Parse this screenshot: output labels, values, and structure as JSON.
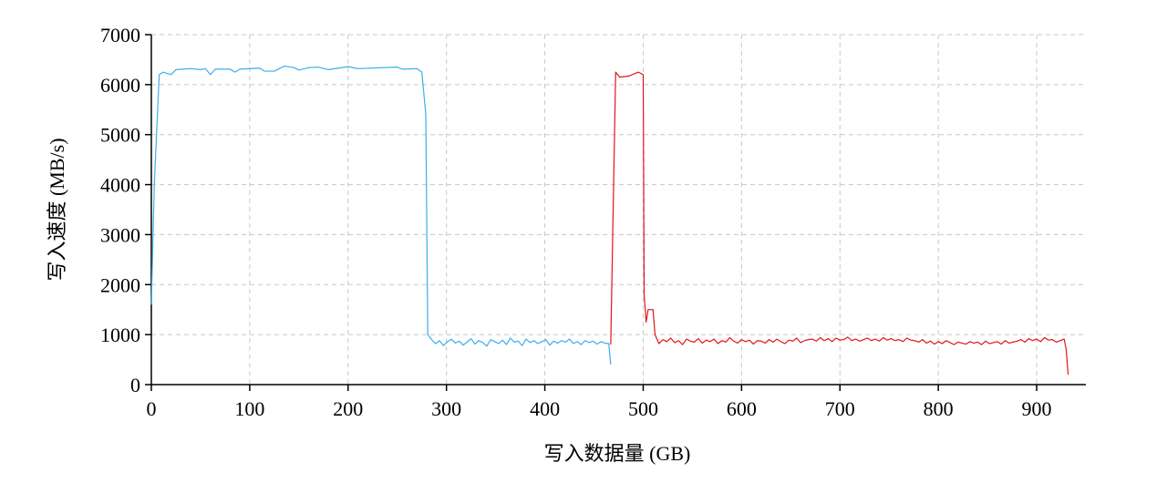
{
  "chart_data": {
    "type": "line",
    "x_label": "写入数据量 (GB)",
    "y_label": "写入速度 (MB/s)",
    "xlim": [
      0,
      950
    ],
    "ylim": [
      0,
      7000
    ],
    "xticks": [
      0,
      100,
      200,
      300,
      400,
      500,
      600,
      700,
      800,
      900
    ],
    "yticks": [
      0,
      1000,
      2000,
      3000,
      4000,
      5000,
      6000,
      7000
    ],
    "grid": true,
    "series": [
      {
        "color": "#3daee9",
        "x": [
          0,
          3,
          8,
          12,
          20,
          25,
          40,
          50,
          55,
          60,
          65,
          80,
          85,
          90,
          110,
          115,
          125,
          135,
          145,
          150,
          160,
          170,
          180,
          200,
          210,
          250,
          255,
          270,
          275,
          279,
          281,
          285,
          289,
          293,
          297,
          301,
          305,
          309,
          313,
          317,
          321,
          325,
          329,
          333,
          337,
          341,
          345,
          349,
          353,
          357,
          361,
          365,
          369,
          373,
          377,
          381,
          385,
          389,
          393,
          397,
          401,
          405,
          409,
          413,
          417,
          421,
          425,
          429,
          433,
          437,
          441,
          445,
          449,
          453,
          457,
          461,
          465,
          467
        ],
        "values": [
          1600,
          4000,
          6200,
          6250,
          6200,
          6300,
          6320,
          6300,
          6320,
          6200,
          6310,
          6310,
          6250,
          6310,
          6330,
          6270,
          6270,
          6370,
          6340,
          6290,
          6340,
          6350,
          6300,
          6360,
          6320,
          6350,
          6310,
          6320,
          6250,
          5400,
          1000,
          900,
          820,
          880,
          780,
          860,
          910,
          830,
          870,
          790,
          850,
          920,
          810,
          880,
          840,
          770,
          900,
          860,
          820,
          890,
          800,
          930,
          850,
          870,
          780,
          910,
          840,
          880,
          820,
          860,
          900,
          790,
          870,
          830,
          880,
          850,
          910,
          820,
          860,
          800,
          880,
          840,
          870,
          810,
          860,
          830,
          820,
          400
        ]
      },
      {
        "color": "#e3141b",
        "x": [
          467,
          472,
          476,
          485,
          495,
          500,
          501,
          503,
          505,
          510,
          512,
          516,
          520,
          524,
          528,
          532,
          536,
          540,
          544,
          548,
          552,
          556,
          560,
          564,
          568,
          572,
          576,
          580,
          584,
          588,
          592,
          596,
          600,
          604,
          608,
          612,
          616,
          620,
          624,
          628,
          632,
          636,
          640,
          644,
          648,
          652,
          656,
          660,
          664,
          668,
          672,
          676,
          680,
          684,
          688,
          692,
          696,
          700,
          704,
          708,
          712,
          716,
          720,
          724,
          728,
          732,
          736,
          740,
          744,
          748,
          752,
          756,
          760,
          764,
          768,
          772,
          776,
          780,
          784,
          788,
          792,
          796,
          800,
          804,
          808,
          812,
          816,
          820,
          824,
          828,
          832,
          836,
          840,
          844,
          848,
          852,
          856,
          860,
          864,
          868,
          872,
          876,
          880,
          884,
          888,
          892,
          896,
          900,
          904,
          908,
          912,
          916,
          920,
          924,
          928,
          930,
          932
        ],
        "values": [
          800,
          6250,
          6150,
          6170,
          6250,
          6200,
          1800,
          1250,
          1500,
          1500,
          1000,
          820,
          900,
          860,
          930,
          840,
          880,
          800,
          910,
          870,
          850,
          920,
          830,
          890,
          860,
          910,
          820,
          880,
          850,
          940,
          870,
          830,
          900,
          860,
          890,
          810,
          880,
          870,
          830,
          900,
          850,
          910,
          860,
          820,
          890,
          870,
          930,
          840,
          880,
          900,
          910,
          870,
          940,
          880,
          920,
          860,
          930,
          890,
          900,
          950,
          880,
          910,
          870,
          900,
          930,
          880,
          910,
          870,
          940,
          890,
          920,
          880,
          900,
          860,
          930,
          890,
          880,
          850,
          900,
          830,
          870,
          810,
          860,
          820,
          880,
          840,
          800,
          850,
          830,
          810,
          860,
          830,
          850,
          800,
          870,
          820,
          840,
          860,
          810,
          880,
          830,
          850,
          870,
          900,
          850,
          920,
          880,
          910,
          860,
          940,
          890,
          900,
          850,
          880,
          910,
          700,
          200
        ]
      }
    ]
  }
}
